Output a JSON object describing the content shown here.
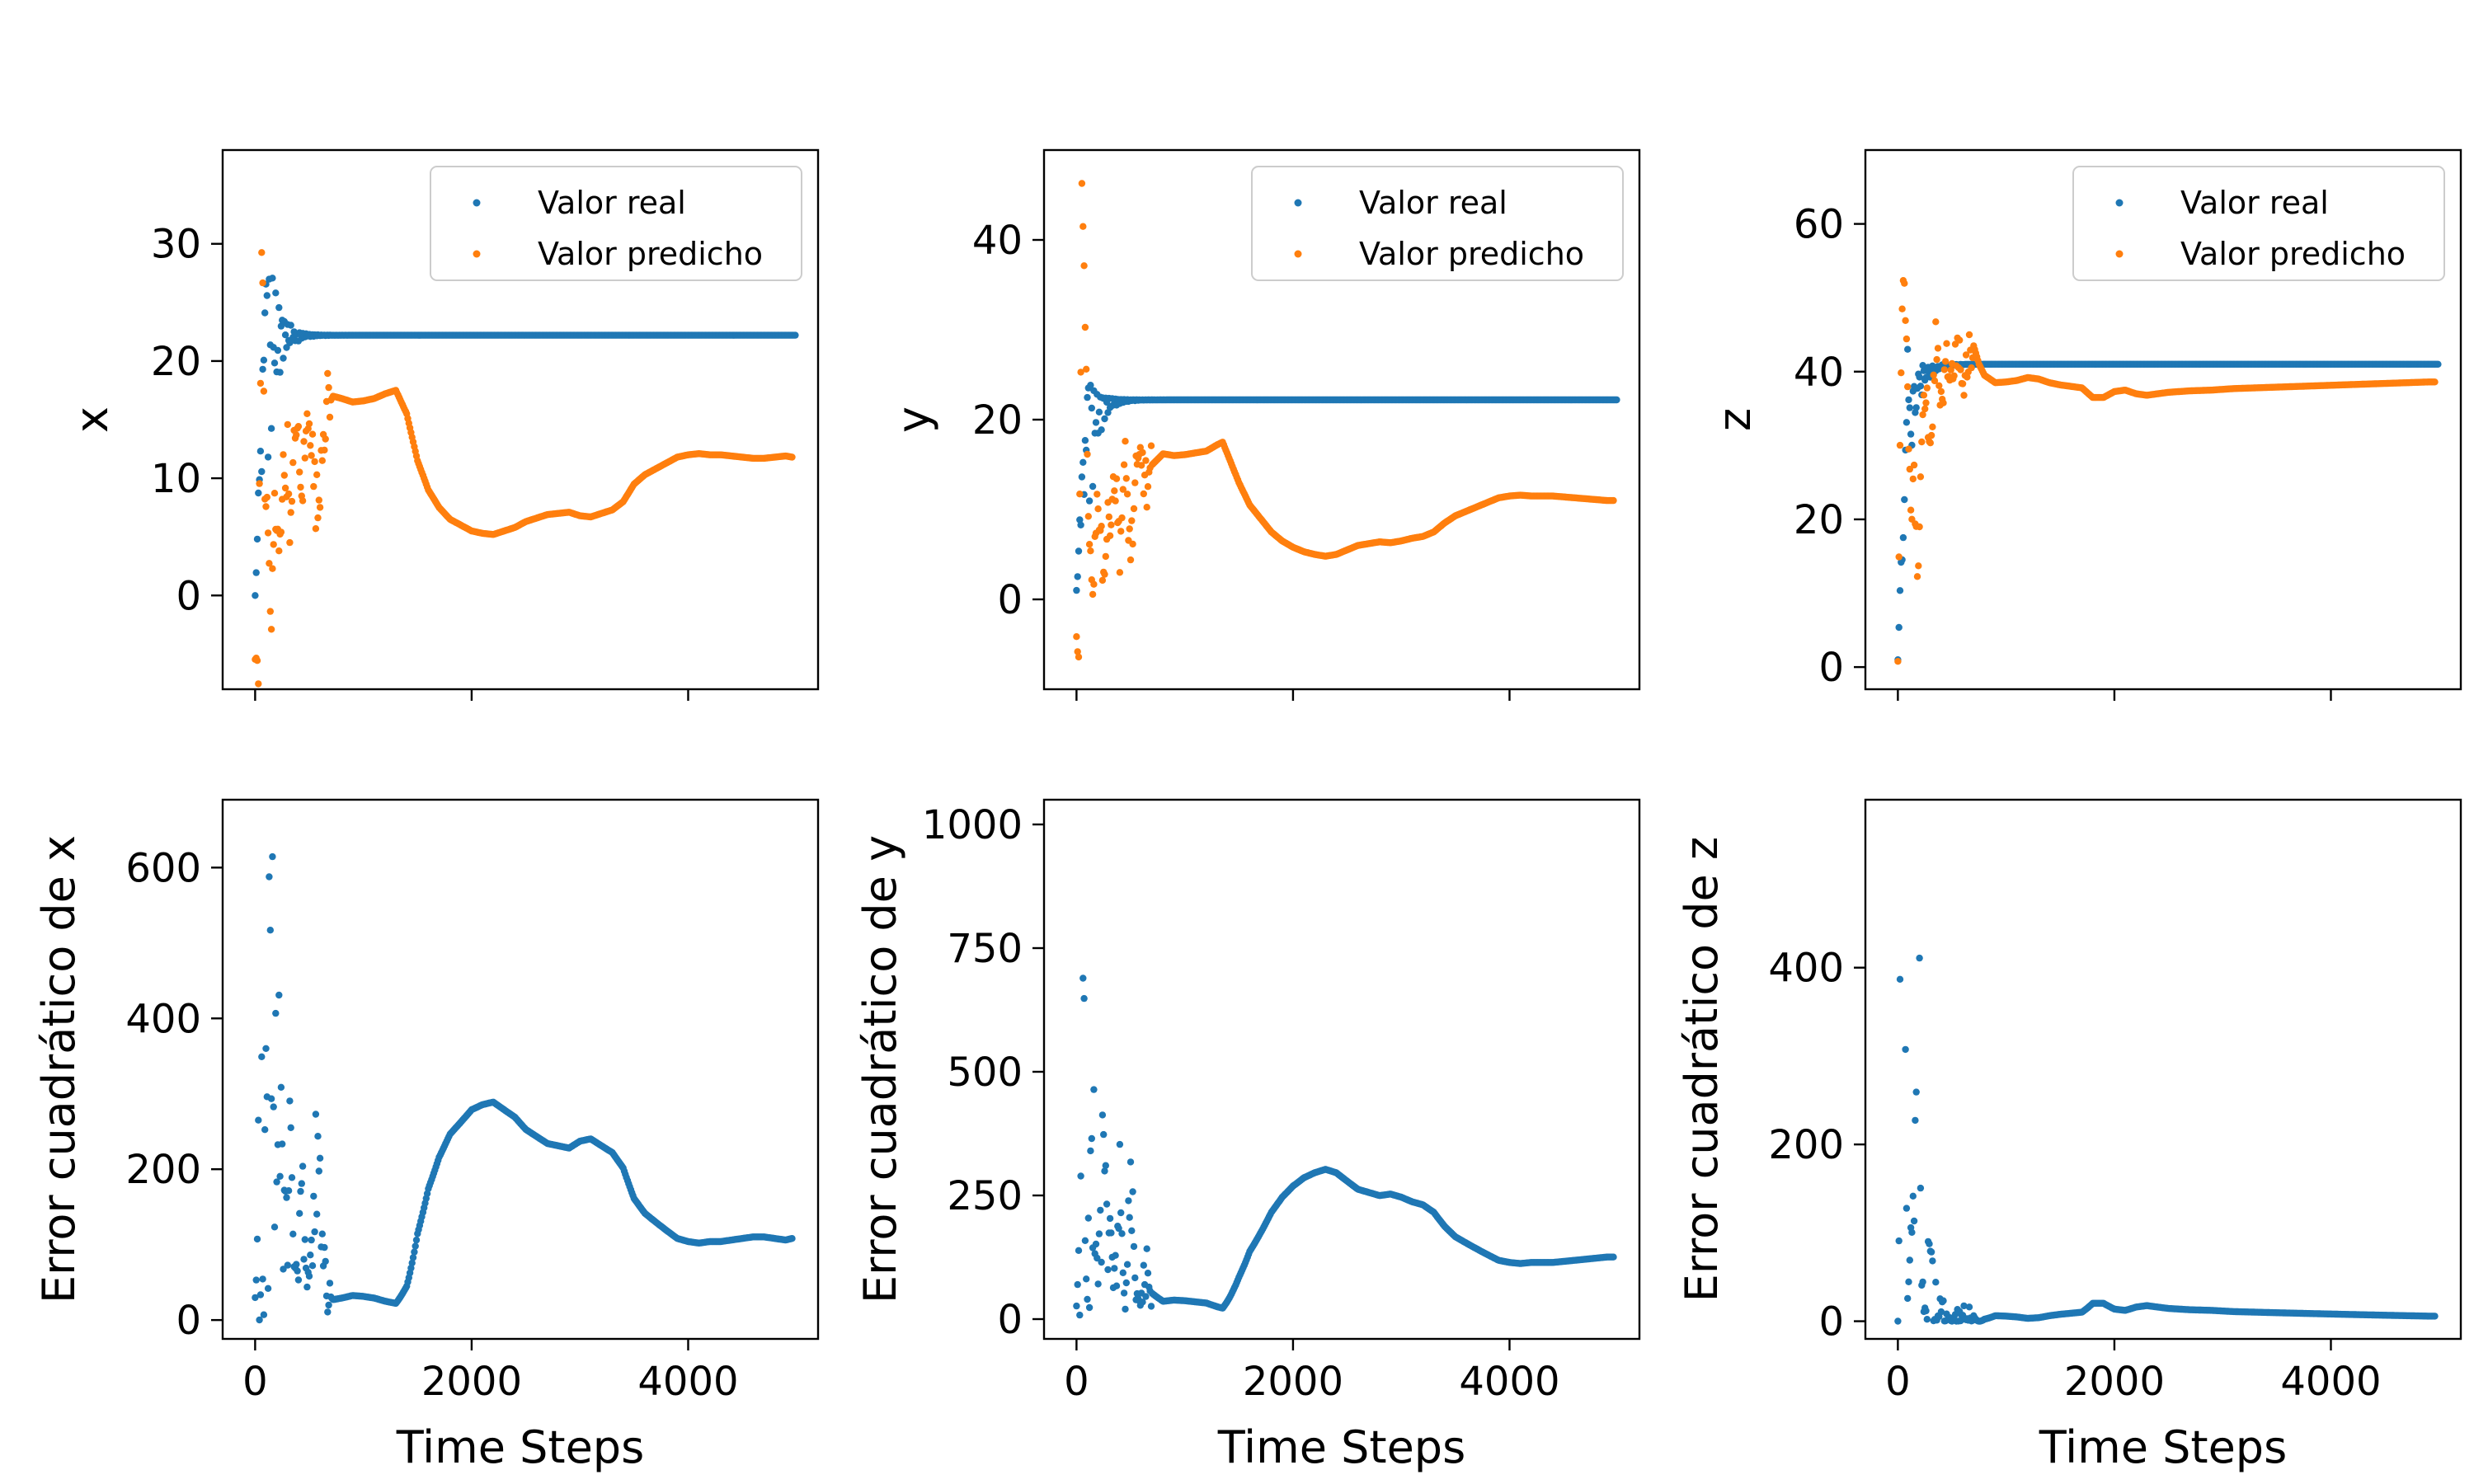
{
  "colors": {
    "real": "#1f77b4",
    "predicted": "#ff7f0e",
    "error": "#1f77b4",
    "axes": "#000000",
    "background": "#ffffff"
  },
  "x_axis": {
    "label": "Time Steps",
    "range": [
      -300,
      5200
    ],
    "ticks": [
      0,
      2000,
      4000
    ]
  },
  "chart_data": [
    {
      "type": "scatter",
      "ylabel": "x",
      "ylim": [
        -8,
        38
      ],
      "yticks": [
        0,
        10,
        20,
        30
      ],
      "legend": {
        "position": "upper-right",
        "entries": [
          "Valor real",
          "Valor predicho"
        ]
      },
      "series": [
        {
          "name": "Valor real",
          "steady": 22.2,
          "start": 0,
          "start_step": 0,
          "peak_step": 100,
          "amp_min": [
            0,
            3
          ],
          "amp_max": [
            14,
            36
          ],
          "damping": 0.012,
          "period": 28
        },
        {
          "name": "Valor predicho",
          "x": [
            0,
            30,
            60,
            90,
            120,
            150,
            180,
            210,
            250,
            300,
            330,
            380,
            420,
            460,
            500,
            540,
            580,
            620,
            660,
            720,
            800,
            900,
            1000,
            1100,
            1200,
            1300,
            1400,
            1500,
            1600,
            1700,
            1800,
            1900,
            2000,
            2100,
            2200,
            2300,
            2400,
            2500,
            2600,
            2700,
            2800,
            2900,
            3000,
            3100,
            3200,
            3300,
            3400,
            3500,
            3600,
            3700,
            3800,
            3900,
            4000,
            4100,
            4200,
            4300,
            4400,
            4500,
            4600,
            4700,
            4800,
            4900,
            4960
          ],
          "y": [
            -6,
            -5,
            31,
            10,
            5,
            -3,
            7,
            4,
            9,
            12,
            5,
            16,
            8,
            12,
            17,
            10,
            7,
            14,
            16,
            17,
            16.8,
            16.5,
            16.6,
            16.8,
            17.2,
            17.5,
            15.5,
            11.5,
            9,
            7.5,
            6.5,
            6,
            5.5,
            5.3,
            5.2,
            5.5,
            5.8,
            6.3,
            6.6,
            6.9,
            7,
            7.1,
            6.8,
            6.7,
            7,
            7.3,
            8,
            9.5,
            10.3,
            10.8,
            11.3,
            11.8,
            12,
            12.1,
            12,
            12,
            11.9,
            11.8,
            11.7,
            11.7,
            11.8,
            11.9,
            11.8
          ]
        }
      ]
    },
    {
      "type": "scatter",
      "ylabel": "y",
      "ylim": [
        -10,
        50
      ],
      "yticks": [
        0,
        20,
        40
      ],
      "legend": {
        "position": "upper-right",
        "entries": [
          "Valor real",
          "Valor predicho"
        ]
      },
      "series": [
        {
          "name": "Valor real",
          "steady": 22.2,
          "start": 1,
          "start_step": 0,
          "peak_step": 100,
          "amp_min": [
            0,
            1
          ],
          "amp_max": [
            16,
            25
          ],
          "damping": 0.012,
          "period": 28
        },
        {
          "name": "Valor predicho",
          "x": [
            0,
            20,
            50,
            80,
            110,
            150,
            200,
            250,
            300,
            350,
            400,
            450,
            500,
            550,
            600,
            650,
            700,
            800,
            900,
            1000,
            1100,
            1200,
            1300,
            1350,
            1400,
            1500,
            1600,
            1700,
            1800,
            1900,
            2000,
            2100,
            2200,
            2300,
            2400,
            2500,
            2600,
            2700,
            2800,
            2900,
            3000,
            3100,
            3200,
            3300,
            3400,
            3500,
            3600,
            3700,
            3800,
            3900,
            4000,
            4100,
            4200,
            4300,
            4400,
            4500,
            4600,
            4700,
            4800,
            4900,
            4960
          ],
          "y": [
            -7,
            -8,
            45,
            30,
            8,
            2,
            12,
            3,
            9,
            14,
            6,
            15,
            5,
            13,
            16,
            12,
            15,
            16.2,
            16,
            16.1,
            16.3,
            16.5,
            17.2,
            17.5,
            16,
            13,
            10.5,
            9,
            7.5,
            6.5,
            5.8,
            5.3,
            5,
            4.8,
            5,
            5.5,
            6,
            6.2,
            6.4,
            6.3,
            6.5,
            6.8,
            7,
            7.5,
            8.5,
            9.3,
            9.8,
            10.3,
            10.8,
            11.3,
            11.5,
            11.6,
            11.5,
            11.5,
            11.5,
            11.4,
            11.3,
            11.2,
            11.1,
            11.0,
            11.0
          ]
        }
      ]
    },
    {
      "type": "scatter",
      "ylabel": "z",
      "ylim": [
        -3,
        70
      ],
      "yticks": [
        0,
        20,
        40,
        60
      ],
      "legend": {
        "position": "upper-right",
        "entries": [
          "Valor real",
          "Valor predicho"
        ]
      },
      "series": [
        {
          "name": "Valor real",
          "steady": 41.0,
          "start": 1,
          "start_step": 0,
          "peak_step": 100,
          "amp_min": [
            0,
            24
          ],
          "amp_max": [
            5,
            25
          ],
          "damping": 0.011,
          "period": 26
        },
        {
          "name": "Valor predicho",
          "x": [
            0,
            20,
            50,
            80,
            120,
            150,
            180,
            220,
            260,
            300,
            350,
            400,
            450,
            500,
            550,
            600,
            650,
            700,
            750,
            800,
            900,
            1000,
            1100,
            1200,
            1300,
            1400,
            1500,
            1600,
            1700,
            1800,
            1900,
            2000,
            2100,
            2200,
            2300,
            2400,
            2500,
            2700,
            2900,
            3100,
            3300,
            3500,
            3700,
            3900,
            4100,
            4300,
            4500,
            4700,
            4900,
            4960
          ],
          "y": [
            2,
            30,
            54,
            42,
            20,
            25,
            12,
            30,
            38,
            28,
            44,
            36,
            42,
            39,
            44,
            38,
            42,
            43.5,
            41,
            39.5,
            38.5,
            38.6,
            38.8,
            39.2,
            39,
            38.5,
            38.2,
            38,
            37.8,
            36.5,
            36.5,
            37.3,
            37.5,
            37,
            36.8,
            37,
            37.2,
            37.4,
            37.5,
            37.7,
            37.8,
            37.9,
            38,
            38.1,
            38.2,
            38.3,
            38.4,
            38.5,
            38.6,
            38.6
          ]
        }
      ]
    },
    {
      "type": "scatter",
      "ylabel": "Error cuadrático de x",
      "ylim": [
        -25,
        690
      ],
      "yticks": [
        0,
        200,
        400,
        600
      ],
      "series": [
        {
          "name": "",
          "derived_from": 0
        }
      ]
    },
    {
      "type": "scatter",
      "ylabel": "Error cuadrático de y",
      "ylim": [
        -40,
        1050
      ],
      "yticks": [
        0,
        250,
        500,
        750,
        1000
      ],
      "series": [
        {
          "name": "",
          "derived_from": 1
        }
      ]
    },
    {
      "type": "scatter",
      "ylabel": "Error cuadrático de z",
      "ylim": [
        -20,
        590
      ],
      "yticks": [
        0,
        200,
        400
      ],
      "series": [
        {
          "name": "",
          "derived_from": 2
        }
      ]
    }
  ]
}
